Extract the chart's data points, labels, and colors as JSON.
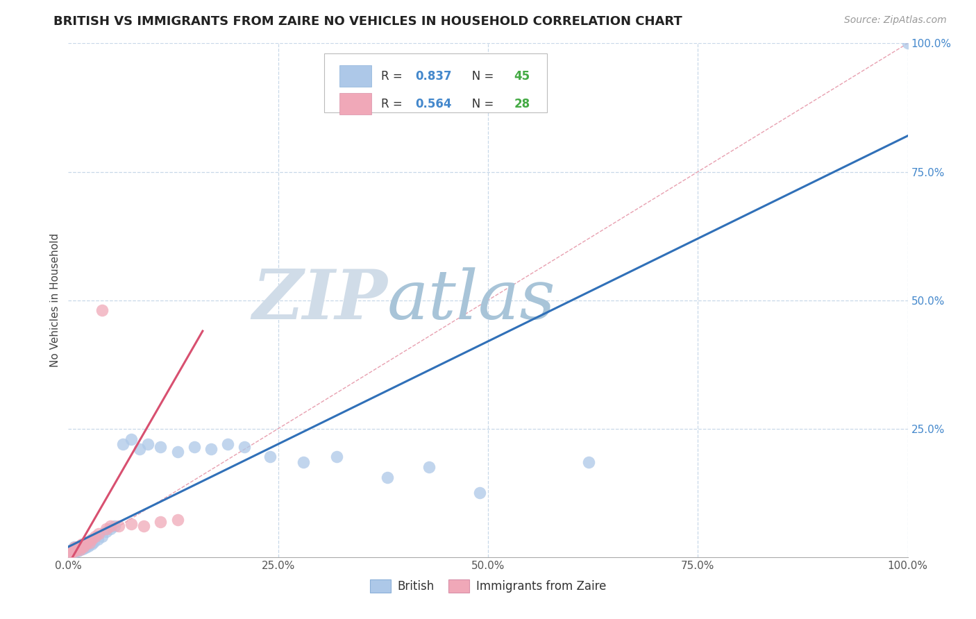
{
  "title": "BRITISH VS IMMIGRANTS FROM ZAIRE NO VEHICLES IN HOUSEHOLD CORRELATION CHART",
  "source": "Source: ZipAtlas.com",
  "ylabel": "No Vehicles in Household",
  "xlim": [
    0,
    1
  ],
  "ylim": [
    0,
    1
  ],
  "xticks": [
    0.0,
    0.25,
    0.5,
    0.75,
    1.0
  ],
  "yticks": [
    0.0,
    0.25,
    0.5,
    0.75,
    1.0
  ],
  "xticklabels": [
    "0.0%",
    "25.0%",
    "50.0%",
    "75.0%",
    "100.0%"
  ],
  "yticklabels": [
    "",
    "25.0%",
    "50.0%",
    "75.0%",
    "100.0%"
  ],
  "british_R": 0.837,
  "british_N": 45,
  "zaire_R": 0.564,
  "zaire_N": 28,
  "british_color": "#adc8e8",
  "british_line_color": "#3070b8",
  "zaire_color": "#f0a8b8",
  "zaire_line_color": "#d85070",
  "background_color": "#ffffff",
  "grid_color": "#c8d8e8",
  "watermark_zip": "ZIP",
  "watermark_atlas": "atlas",
  "watermark_color_zip": "#d0dce8",
  "watermark_color_atlas": "#a8c4d8",
  "legend_R_color": "#4488cc",
  "legend_N_color": "#44aa44",
  "british_x": [
    0.003,
    0.004,
    0.005,
    0.006,
    0.007,
    0.008,
    0.009,
    0.01,
    0.011,
    0.012,
    0.013,
    0.014,
    0.015,
    0.016,
    0.017,
    0.018,
    0.02,
    0.022,
    0.024,
    0.026,
    0.028,
    0.03,
    0.035,
    0.04,
    0.045,
    0.05,
    0.055,
    0.065,
    0.075,
    0.085,
    0.095,
    0.11,
    0.13,
    0.15,
    0.17,
    0.19,
    0.21,
    0.24,
    0.28,
    0.32,
    0.38,
    0.43,
    0.49,
    0.62,
    1.0
  ],
  "british_y": [
    0.01,
    0.015,
    0.008,
    0.012,
    0.02,
    0.01,
    0.015,
    0.018,
    0.012,
    0.016,
    0.02,
    0.014,
    0.018,
    0.022,
    0.016,
    0.02,
    0.018,
    0.025,
    0.022,
    0.028,
    0.025,
    0.03,
    0.035,
    0.04,
    0.05,
    0.055,
    0.06,
    0.22,
    0.23,
    0.21,
    0.22,
    0.215,
    0.205,
    0.215,
    0.21,
    0.22,
    0.215,
    0.195,
    0.185,
    0.195,
    0.155,
    0.175,
    0.125,
    0.185,
    1.0
  ],
  "zaire_x": [
    0.003,
    0.004,
    0.005,
    0.006,
    0.007,
    0.008,
    0.009,
    0.01,
    0.012,
    0.013,
    0.014,
    0.015,
    0.016,
    0.018,
    0.02,
    0.022,
    0.025,
    0.028,
    0.032,
    0.036,
    0.04,
    0.045,
    0.05,
    0.06,
    0.075,
    0.09,
    0.11,
    0.13
  ],
  "zaire_y": [
    0.008,
    0.012,
    0.01,
    0.015,
    0.018,
    0.012,
    0.016,
    0.02,
    0.018,
    0.022,
    0.015,
    0.02,
    0.025,
    0.02,
    0.025,
    0.03,
    0.028,
    0.035,
    0.04,
    0.045,
    0.48,
    0.055,
    0.06,
    0.06,
    0.065,
    0.06,
    0.068,
    0.072
  ],
  "british_line_x0": 0.0,
  "british_line_y0": 0.02,
  "british_line_x1": 1.0,
  "british_line_y1": 0.82,
  "zaire_line_x0": 0.005,
  "zaire_line_y0": 0.0,
  "zaire_line_x1": 0.16,
  "zaire_line_y1": 0.44
}
